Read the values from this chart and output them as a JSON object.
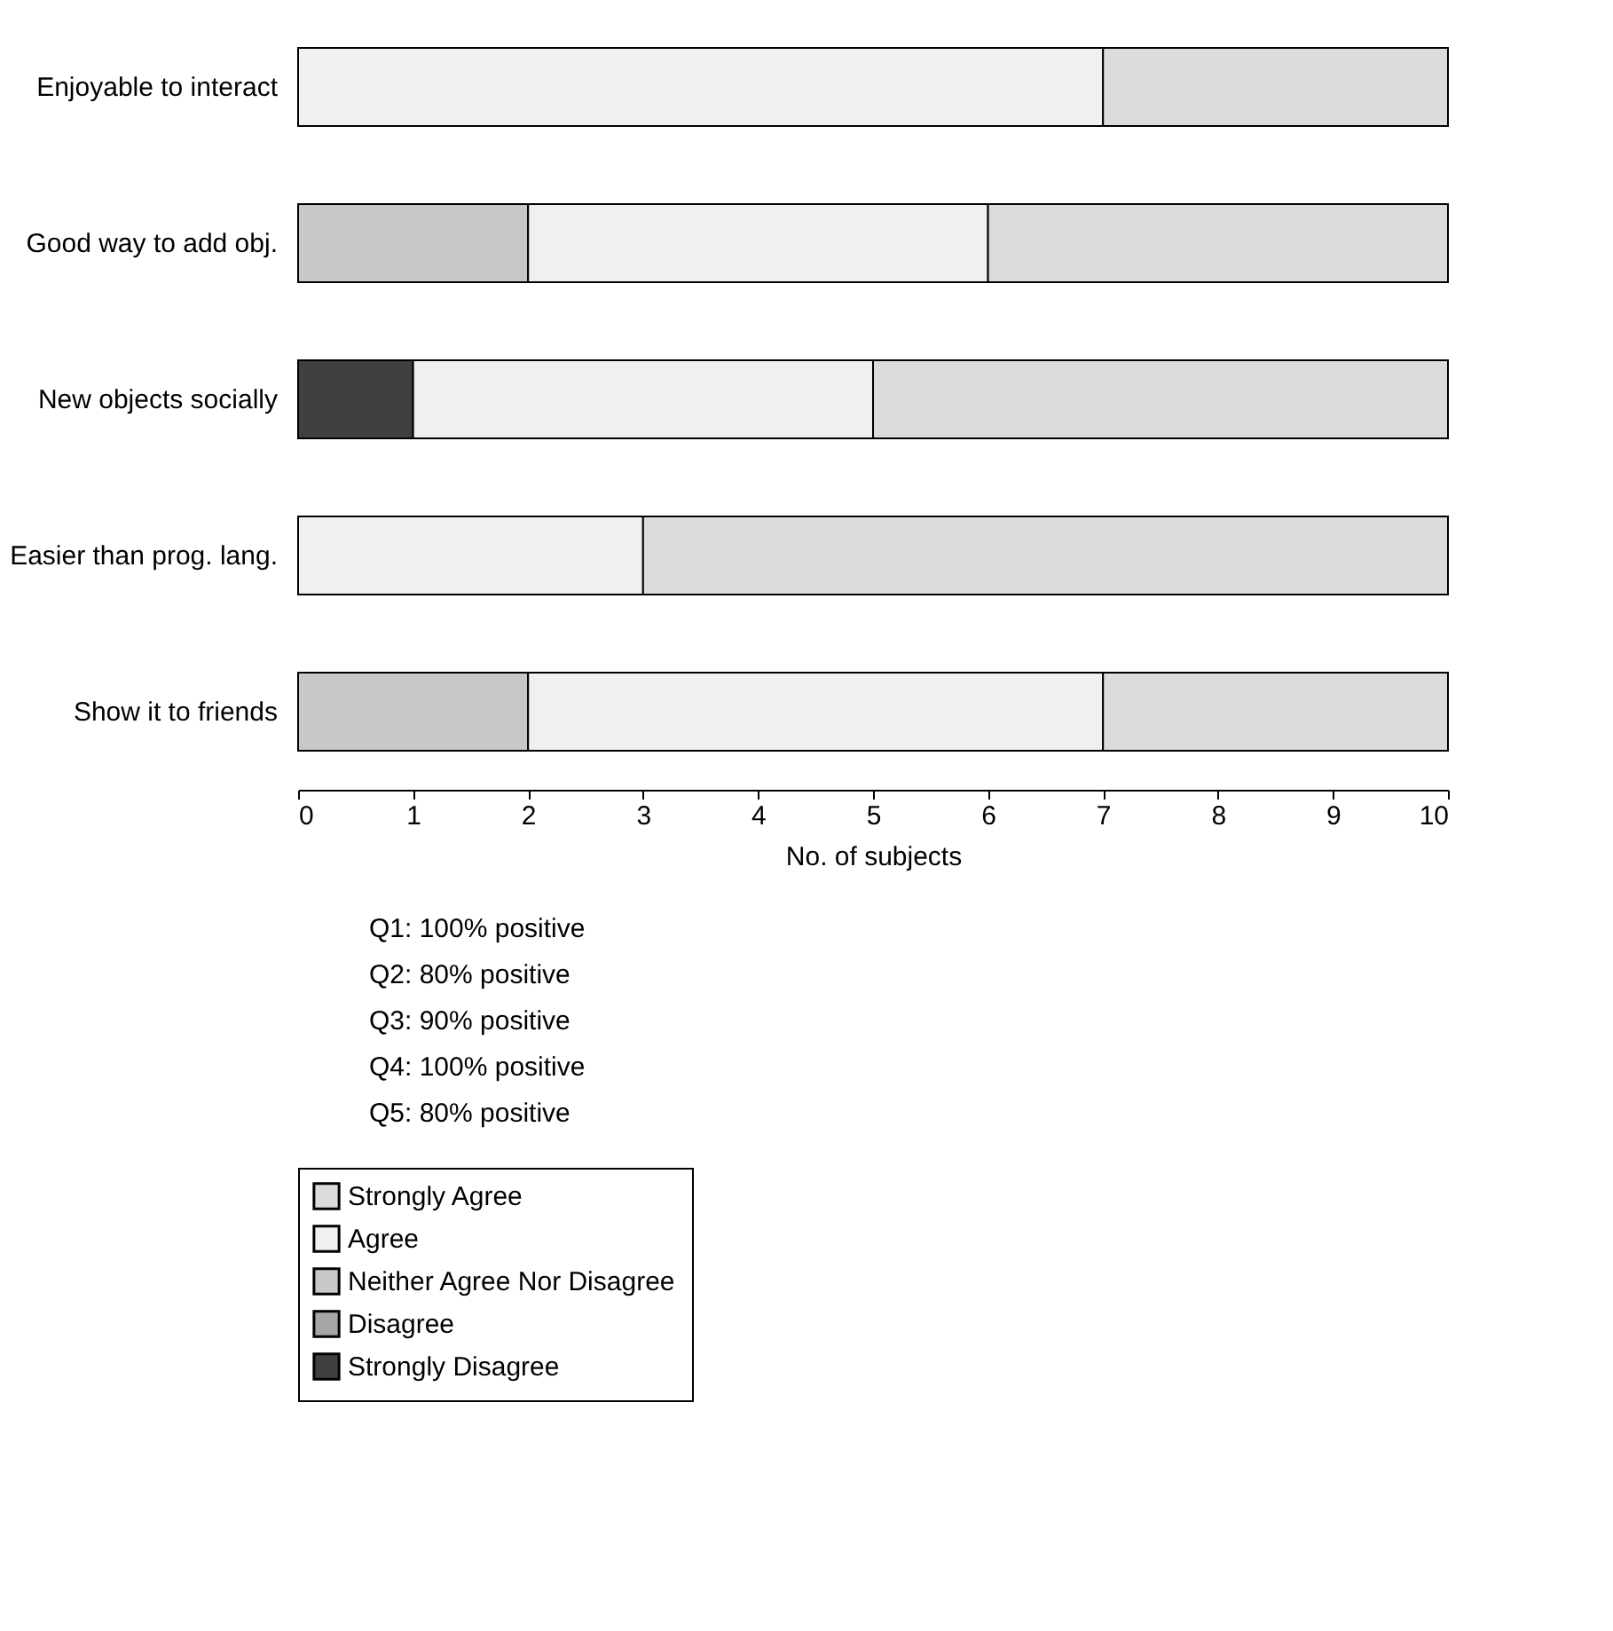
{
  "chart_data": {
    "type": "bar",
    "orientation": "horizontal",
    "stacked": true,
    "xlabel": "No. of subjects",
    "categories": [
      "Enjoyable to interact",
      "Good way to add obj.",
      "New objects socially",
      "Easier than prog. lang.",
      "Show it to friends"
    ],
    "series": [
      {
        "name": "Strongly Disagree",
        "color": "#404040",
        "values": [
          null,
          null,
          1,
          null,
          null
        ]
      },
      {
        "name": "Disagree",
        "color": "#a6a6a6",
        "values": [
          null,
          null,
          null,
          null,
          null
        ]
      },
      {
        "name": "Neither Agree Nor Disagree",
        "color": "#c8c8c8",
        "values": [
          null,
          2,
          null,
          null,
          2
        ]
      },
      {
        "name": "Agree",
        "color": "#f0f0f0",
        "values": [
          7,
          4,
          4,
          3,
          5
        ]
      },
      {
        "name": "Strongly Agree",
        "color": "#dcdcdc",
        "values": [
          3,
          4,
          5,
          7,
          3
        ]
      }
    ],
    "xlim": [
      0,
      10
    ],
    "xticks": [
      0,
      1,
      2,
      3,
      4,
      5,
      6,
      7,
      8,
      9,
      10
    ],
    "grid": false,
    "legend": "bottom",
    "annotations": [
      "Q1: 100% positive",
      "Q2: 80% positive",
      "Q3: 90% positive",
      "Q4: 100% positive",
      "Q5: 80% positive"
    ]
  }
}
